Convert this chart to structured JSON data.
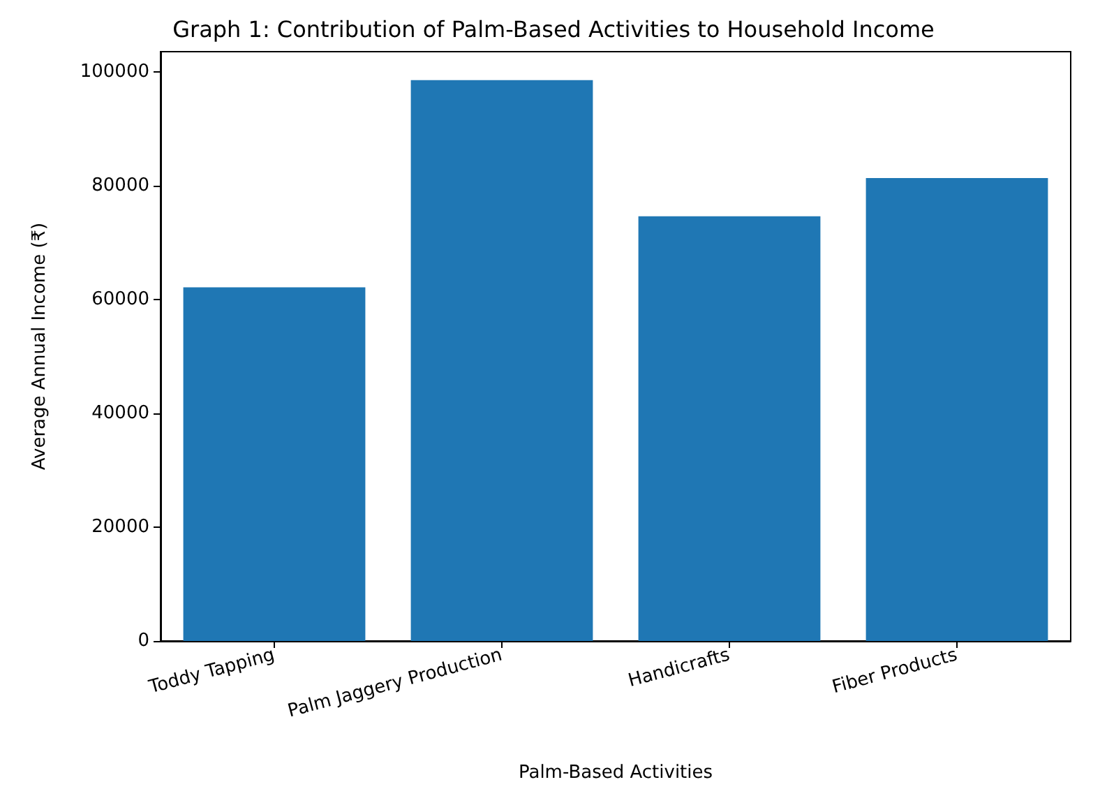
{
  "chart_data": {
    "type": "bar",
    "title": "Graph 1: Contribution of Palm-Based Activities to Household Income",
    "xlabel": "Palm-Based Activities",
    "ylabel": "Average Annual Income (₹)",
    "categories": [
      "Toddy Tapping",
      "Palm Jaggery Production",
      "Handicrafts",
      "Fiber Products"
    ],
    "values": [
      62100,
      98500,
      74600,
      81300
    ],
    "color": "#1f77b4",
    "ylim": [
      0,
      103500
    ],
    "yticks": [
      0,
      20000,
      40000,
      60000,
      80000,
      100000
    ],
    "grid": false
  }
}
